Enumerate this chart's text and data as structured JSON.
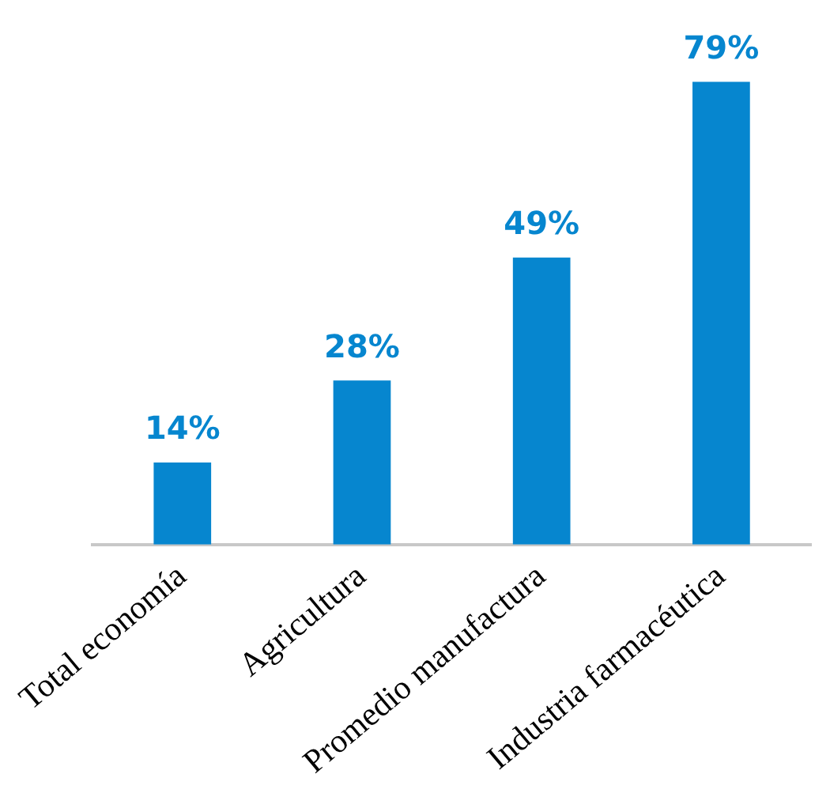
{
  "chart_data": {
    "type": "bar",
    "categories": [
      "Total economía",
      "Agricultura",
      "Promedio manufactura",
      "Industria farmacéutica"
    ],
    "values": [
      14,
      28,
      49,
      79
    ],
    "value_labels": [
      "14%",
      "28%",
      "49%",
      "79%"
    ],
    "color": "#0686cf",
    "grid": false,
    "legend": false
  }
}
